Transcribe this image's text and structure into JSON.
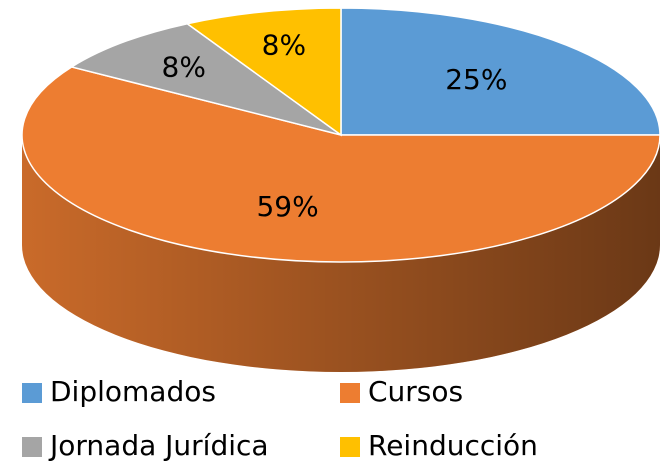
{
  "chart_data": {
    "type": "pie",
    "three_d": true,
    "categories": [
      "Diplomados",
      "Cursos",
      "Jornada Jurídica",
      "Reinducción"
    ],
    "values": [
      25,
      59,
      8,
      8
    ],
    "value_labels": [
      "25%",
      "59%",
      "8%",
      "8%"
    ],
    "colors": [
      "#5b9bd5",
      "#ed7d31",
      "#a5a5a5",
      "#ffc000"
    ],
    "legend": "bottom"
  }
}
